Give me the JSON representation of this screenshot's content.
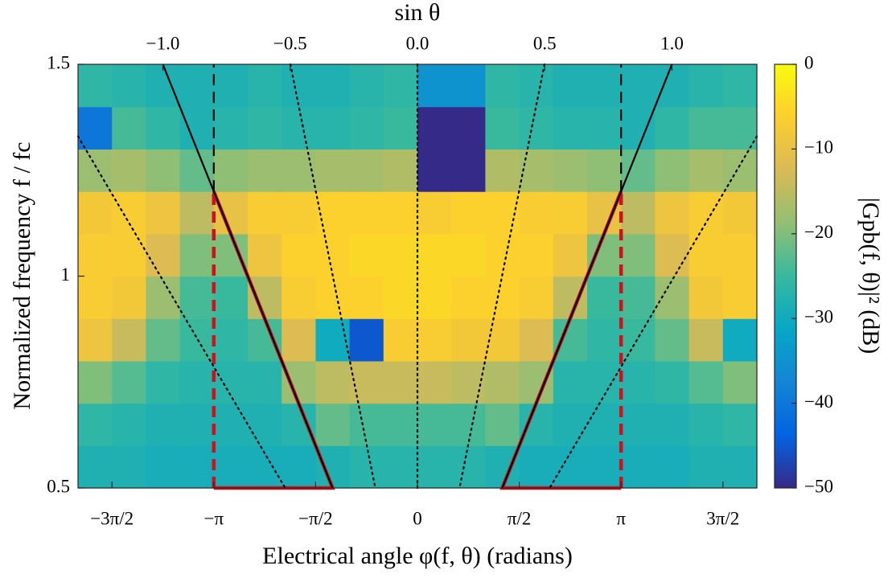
{
  "chart_data": {
    "type": "heatmap",
    "top_axis_label": "sin θ",
    "xlabel": "Electrical angle φ(f, θ) (radians)",
    "ylabel": "Normalized frequency f / fc",
    "colorbar_label": "|Gpb(f, θ)|² (dB)",
    "xlim": [
      -5.235988,
      5.235988
    ],
    "xticks": [
      {
        "value": -4.712389,
        "label": "−3π/2"
      },
      {
        "value": -3.141593,
        "label": "−π"
      },
      {
        "value": -1.570796,
        "label": "−π/2"
      },
      0,
      {
        "value": 1.570796,
        "label": "π/2"
      },
      {
        "value": 3.141593,
        "label": "π"
      },
      {
        "value": 4.712389,
        "label": "3π/2"
      }
    ],
    "x2lim": [
      -1.3333,
      1.3333
    ],
    "x2ticks": [
      {
        "value": -1,
        "label": "−1.0"
      },
      {
        "value": -0.5,
        "label": "−0.5"
      },
      {
        "value": 0,
        "label": "0.0"
      },
      0.5,
      {
        "value": 1,
        "label": "1.0"
      }
    ],
    "ylim": [
      0.5,
      1.5
    ],
    "yticks": [
      0.5,
      1,
      1.5
    ],
    "clim": [
      -50,
      0
    ],
    "cticks": [
      {
        "value": -50,
        "label": "−50"
      },
      {
        "value": -40,
        "label": "−40"
      },
      {
        "value": -30,
        "label": "−30"
      },
      {
        "value": -20,
        "label": "−20"
      },
      {
        "value": -10,
        "label": "−10"
      },
      0
    ],
    "colormap": [
      "#352a87",
      "#0363e1",
      "#1485d4",
      "#06a7c6",
      "#38b99e",
      "#92bf73",
      "#d9ba56",
      "#fcce2e",
      "#f9fb0e"
    ],
    "z": [
      [
        -28,
        -28,
        -29,
        -29,
        -29,
        -29,
        -29,
        -28,
        -27,
        -27,
        -27,
        -27,
        -28,
        -29,
        -29,
        -29,
        -29,
        -29,
        -28,
        -28
      ],
      [
        -26,
        -27,
        -28,
        -28,
        -28,
        -28,
        -27,
        -22,
        -24,
        -24,
        -24,
        -24,
        -22,
        -27,
        -28,
        -28,
        -28,
        -28,
        -27,
        -26
      ],
      [
        -20,
        -23,
        -26,
        -27,
        -27,
        -27,
        -18,
        -15,
        -14,
        -14,
        -14,
        -15,
        -16,
        -18,
        -27,
        -27,
        -27,
        -26,
        -23,
        -20
      ],
      [
        -9,
        -14,
        -22,
        -25,
        -26,
        -24,
        -12,
        -30,
        -45,
        -7,
        -7,
        -8,
        -8,
        -12,
        -24,
        -26,
        -25,
        -22,
        -14,
        -30
      ],
      [
        -7,
        -8,
        -18,
        -24,
        -25,
        -15,
        -7,
        -6,
        -6,
        -5,
        -5,
        -6,
        -6,
        -7,
        -15,
        -25,
        -24,
        -18,
        -8,
        -7
      ],
      [
        -7,
        -7,
        -12,
        -20,
        -20,
        -9,
        -6,
        -6,
        -5,
        -5,
        -5,
        -5,
        -6,
        -6,
        -9,
        -20,
        -20,
        -12,
        -7,
        -7
      ],
      [
        -8,
        -7,
        -9,
        -15,
        -10,
        -7,
        -7,
        -6,
        -6,
        -6,
        -7,
        -6,
        -6,
        -7,
        -7,
        -10,
        -15,
        -9,
        -7,
        -8
      ],
      [
        -18,
        -17,
        -19,
        -22,
        -19,
        -18,
        -18,
        -17,
        -17,
        -16,
        -50,
        -50,
        -16,
        -17,
        -18,
        -19,
        -22,
        -19,
        -17,
        -18
      ],
      [
        -40,
        -24,
        -26,
        -28,
        -27,
        -26,
        -27,
        -27,
        -26,
        -25,
        -50,
        -50,
        -25,
        -26,
        -27,
        -27,
        -28,
        -26,
        -24,
        -24
      ],
      [
        -26,
        -27,
        -28,
        -28,
        -28,
        -27,
        -28,
        -28,
        -27,
        -26,
        -35,
        -35,
        -26,
        -27,
        -28,
        -28,
        -28,
        -28,
        -27,
        -26
      ]
    ],
    "overlays": [
      {
        "style": "solid",
        "color": "#d0101a",
        "x": [
          -3.141593,
          -1.309,
          -3.141593
        ],
        "y": [
          1.2,
          0.5,
          0.5
        ]
      },
      {
        "style": "dashed",
        "color": "#d0101a",
        "x": [
          -3.141593,
          -3.141593
        ],
        "y": [
          0.5,
          1.2
        ]
      },
      {
        "style": "solid",
        "color": "#d0101a",
        "x": [
          3.141593,
          1.309,
          3.141593
        ],
        "y": [
          1.2,
          0.5,
          0.5
        ]
      },
      {
        "style": "dashed",
        "color": "#d0101a",
        "x": [
          3.141593,
          3.141593
        ],
        "y": [
          0.5,
          1.2
        ]
      },
      {
        "style": "solid",
        "color": "#000000",
        "x": [
          -3.927,
          -1.309
        ],
        "y": [
          1.5,
          0.5
        ]
      },
      {
        "style": "solid",
        "color": "#000000",
        "x": [
          3.927,
          1.309
        ],
        "y": [
          1.5,
          0.5
        ]
      },
      {
        "style": "dashed",
        "color": "#000000",
        "x": [
          -3.141593,
          -3.141593
        ],
        "y": [
          1.2,
          1.5
        ]
      },
      {
        "style": "dashed",
        "color": "#000000",
        "x": [
          3.141593,
          3.141593
        ],
        "y": [
          1.2,
          1.5
        ]
      },
      {
        "style": "dotted",
        "color": "#000000",
        "x": [
          0,
          0
        ],
        "y": [
          0.5,
          1.5
        ]
      },
      {
        "style": "dotted",
        "color": "#000000",
        "x": [
          -1.96,
          -0.65
        ],
        "y": [
          1.5,
          0.5
        ]
      },
      {
        "style": "dotted",
        "color": "#000000",
        "x": [
          1.96,
          0.65
        ],
        "y": [
          1.5,
          0.5
        ]
      },
      {
        "style": "dotted",
        "color": "#000000",
        "x": [
          -5.235988,
          -2.04
        ],
        "y": [
          1.33,
          0.5
        ]
      },
      {
        "style": "dotted",
        "color": "#000000",
        "x": [
          5.235988,
          2.04
        ],
        "y": [
          1.33,
          0.5
        ]
      }
    ]
  }
}
